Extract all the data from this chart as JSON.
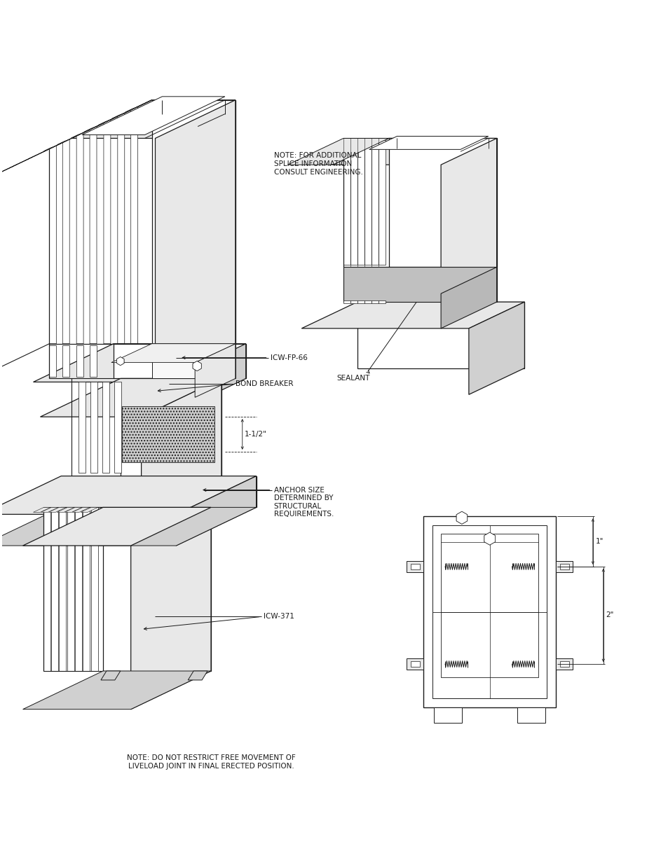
{
  "bg_color": "#ffffff",
  "line_color": "#1a1a1a",
  "annotations": {
    "note_top": "NOTE: FOR ADDITIONAL\nSPLICE INFORMATION\nCONSULT ENGINEERING.",
    "icw_fp_66": "ICW-FP-66",
    "bond_breaker": "BOND BREAKER",
    "dim_1_5": "1-1/2\"",
    "anchor_size": "ANCHOR SIZE\nDETERMINED BY\nSTRUCTURAL\nREQUIREMENTS.",
    "icw_371": "ICW-371",
    "sealant": "SEALANT",
    "dim_1": "1\"",
    "dim_2": "2\"",
    "note_bottom": "NOTE: DO NOT RESTRICT FREE MOVEMENT OF\nLIVELOAD JOINT IN FINAL ERECTED POSITION."
  },
  "font_size": 7.5
}
